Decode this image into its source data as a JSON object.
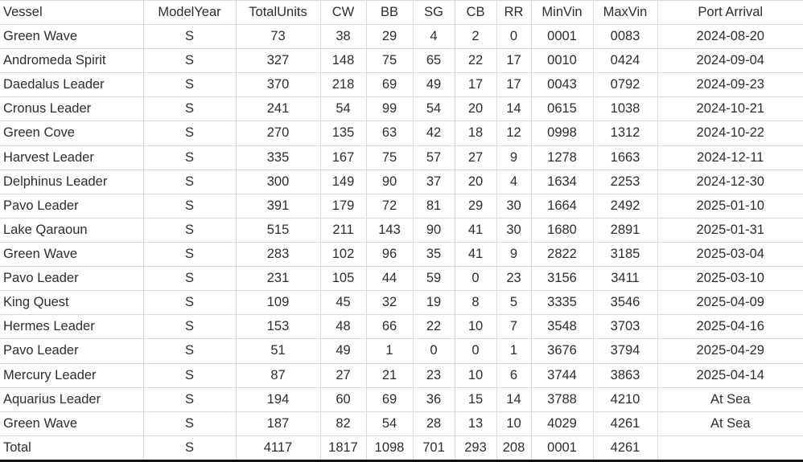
{
  "table": {
    "columns": [
      {
        "key": "vessel",
        "label": "Vessel"
      },
      {
        "key": "model_year",
        "label": "ModelYear"
      },
      {
        "key": "total_units",
        "label": "TotalUnits"
      },
      {
        "key": "cw",
        "label": "CW"
      },
      {
        "key": "bb",
        "label": "BB"
      },
      {
        "key": "sg",
        "label": "SG"
      },
      {
        "key": "cb",
        "label": "CB"
      },
      {
        "key": "rr",
        "label": "RR"
      },
      {
        "key": "min_vin",
        "label": "MinVin"
      },
      {
        "key": "max_vin",
        "label": "MaxVin"
      },
      {
        "key": "port_arrival",
        "label": "Port Arrival"
      }
    ],
    "rows": [
      [
        "Green Wave",
        "S",
        "73",
        "38",
        "29",
        "4",
        "2",
        "0",
        "0001",
        "0083",
        "2024-08-20"
      ],
      [
        "Andromeda Spirit",
        "S",
        "327",
        "148",
        "75",
        "65",
        "22",
        "17",
        "0010",
        "0424",
        "2024-09-04"
      ],
      [
        "Daedalus Leader",
        "S",
        "370",
        "218",
        "69",
        "49",
        "17",
        "17",
        "0043",
        "0792",
        "2024-09-23"
      ],
      [
        "Cronus Leader",
        "S",
        "241",
        "54",
        "99",
        "54",
        "20",
        "14",
        "0615",
        "1038",
        "2024-10-21"
      ],
      [
        "Green Cove",
        "S",
        "270",
        "135",
        "63",
        "42",
        "18",
        "12",
        "0998",
        "1312",
        "2024-10-22"
      ],
      [
        "Harvest Leader",
        "S",
        "335",
        "167",
        "75",
        "57",
        "27",
        "9",
        "1278",
        "1663",
        "2024-12-11"
      ],
      [
        "Delphinus Leader",
        "S",
        "300",
        "149",
        "90",
        "37",
        "20",
        "4",
        "1634",
        "2253",
        "2024-12-30"
      ],
      [
        "Pavo Leader",
        "S",
        "391",
        "179",
        "72",
        "81",
        "29",
        "30",
        "1664",
        "2492",
        "2025-01-10"
      ],
      [
        "Lake Qaraoun",
        "S",
        "515",
        "211",
        "143",
        "90",
        "41",
        "30",
        "1680",
        "2891",
        "2025-01-31"
      ],
      [
        "Green Wave",
        "S",
        "283",
        "102",
        "96",
        "35",
        "41",
        "9",
        "2822",
        "3185",
        "2025-03-04"
      ],
      [
        "Pavo Leader",
        "S",
        "231",
        "105",
        "44",
        "59",
        "0",
        "23",
        "3156",
        "3411",
        "2025-03-10"
      ],
      [
        "King Quest",
        "S",
        "109",
        "45",
        "32",
        "19",
        "8",
        "5",
        "3335",
        "3546",
        "2025-04-09"
      ],
      [
        "Hermes Leader",
        "S",
        "153",
        "48",
        "66",
        "22",
        "10",
        "7",
        "3548",
        "3703",
        "2025-04-16"
      ],
      [
        "Pavo Leader",
        "S",
        "51",
        "49",
        "1",
        "0",
        "0",
        "1",
        "3676",
        "3794",
        "2025-04-29"
      ],
      [
        "Mercury Leader",
        "S",
        "87",
        "27",
        "21",
        "23",
        "10",
        "6",
        "3744",
        "3863",
        "2025-04-14"
      ],
      [
        "Aquarius Leader",
        "S",
        "194",
        "60",
        "69",
        "36",
        "15",
        "14",
        "3788",
        "4210",
        "At Sea"
      ],
      [
        "Green Wave",
        "S",
        "187",
        "82",
        "54",
        "28",
        "13",
        "10",
        "4029",
        "4261",
        "At Sea"
      ]
    ],
    "total_row": [
      "Total",
      "S",
      "4117",
      "1817",
      "1098",
      "701",
      "293",
      "208",
      "0001",
      "4261",
      ""
    ]
  },
  "colors": {
    "grid_line": "#d9d9d9",
    "bottom_border": "#111111",
    "text": "#2d2d2d",
    "background": "#ffffff"
  }
}
